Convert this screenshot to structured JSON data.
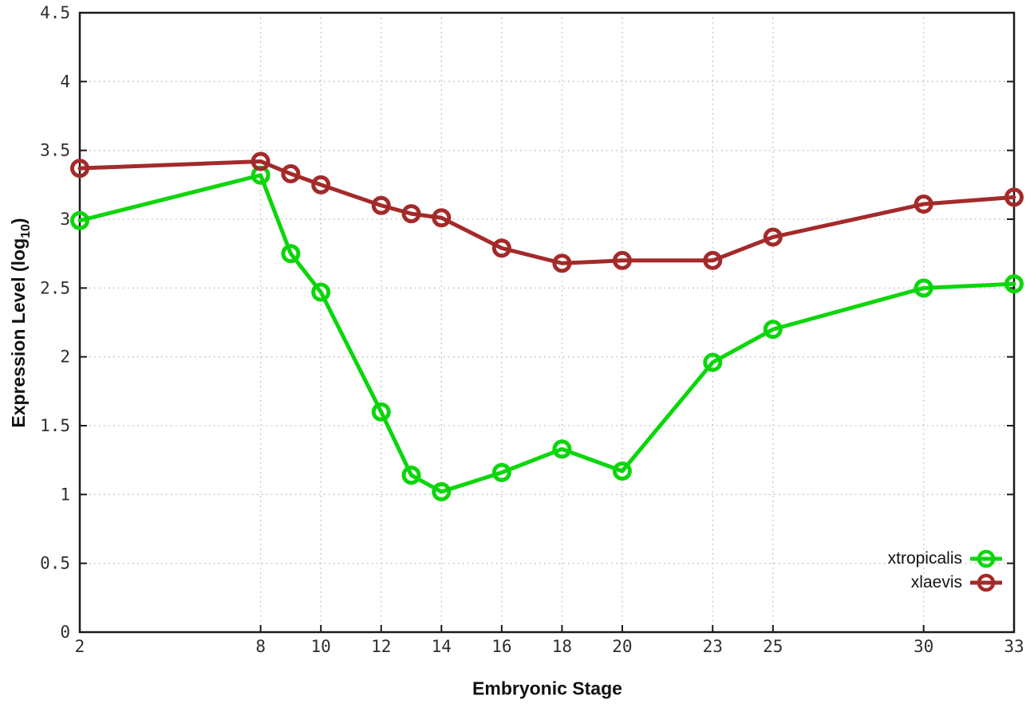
{
  "chart_data": {
    "type": "line",
    "title": "",
    "xlabel": "Embryonic Stage",
    "ylabel": "Expression Level (log10)",
    "ylabel_parts": {
      "base": "Expression Level (log",
      "sub": "10",
      "close": ")"
    },
    "xlim": [
      2,
      33
    ],
    "ylim": [
      0,
      4.5
    ],
    "xticks": [
      2,
      8,
      10,
      12,
      14,
      16,
      18,
      20,
      23,
      25,
      30,
      33
    ],
    "yticks": [
      0,
      0.5,
      1,
      1.5,
      2,
      2.5,
      3,
      3.5,
      4,
      4.5
    ],
    "ytick_labels": [
      "0",
      "0.5",
      "1",
      "1.5",
      "2",
      "2.5",
      "3",
      "3.5",
      "4",
      "4.5"
    ],
    "grid": true,
    "grid_style": "dotted",
    "legend_position": "inside-bottom-right",
    "marker": "open-circle",
    "x": [
      2,
      8,
      9,
      10,
      12,
      13,
      14,
      16,
      18,
      20,
      23,
      25,
      30,
      33
    ],
    "series": [
      {
        "name": "xtropicalis",
        "color": "#0bd60b",
        "values": [
          2.99,
          3.32,
          2.75,
          2.47,
          1.6,
          1.14,
          1.02,
          1.16,
          1.33,
          1.17,
          1.96,
          2.2,
          2.5,
          2.53
        ]
      },
      {
        "name": "xlaevis",
        "color": "#a42a2a",
        "values": [
          3.37,
          3.42,
          3.33,
          3.25,
          3.1,
          3.04,
          3.01,
          2.79,
          2.68,
          2.7,
          2.7,
          2.87,
          3.11,
          3.16
        ]
      }
    ],
    "colors": {
      "grid": "#b9b9b9",
      "border": "#1a1a1a",
      "tick_text": "#2e2e2e",
      "background": "#ffffff"
    }
  }
}
